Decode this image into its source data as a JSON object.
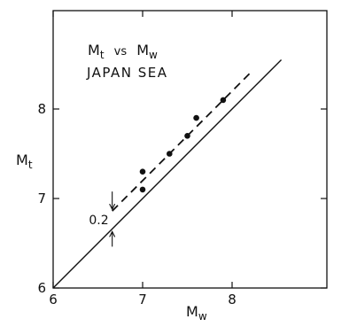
{
  "chart_data": {
    "type": "scatter",
    "title_main": "M",
    "title_main_sub": "t",
    "title_vs": "vs",
    "title_second": "M",
    "title_second_sub": "w",
    "subtitle": "JAPAN SEA",
    "xlabel": "M",
    "xlabel_sub": "w",
    "ylabel": "M",
    "ylabel_sub": "t",
    "xlim": [
      6,
      8.55
    ],
    "ylim": [
      6,
      8.55
    ],
    "xticks": [
      6,
      7,
      8
    ],
    "yticks": [
      6,
      7,
      8
    ],
    "x_tick_labels": [
      "6",
      "7",
      "8"
    ],
    "y_tick_labels": [
      "6",
      "7",
      "8"
    ],
    "points": [
      {
        "x": 7.0,
        "y": 7.1
      },
      {
        "x": 7.0,
        "y": 7.3
      },
      {
        "x": 7.3,
        "y": 7.5
      },
      {
        "x": 7.5,
        "y": 7.7
      },
      {
        "x": 7.6,
        "y": 7.9
      },
      {
        "x": 7.9,
        "y": 8.1
      }
    ],
    "solid_line": {
      "x": [
        6,
        8.55
      ],
      "y": [
        6,
        8.55
      ]
    },
    "dashed_line": {
      "x": [
        6.66,
        8.2
      ],
      "y": [
        6.86,
        8.4
      ]
    },
    "offset_label": "0.2",
    "offset_x": 6.66,
    "grid": false
  }
}
